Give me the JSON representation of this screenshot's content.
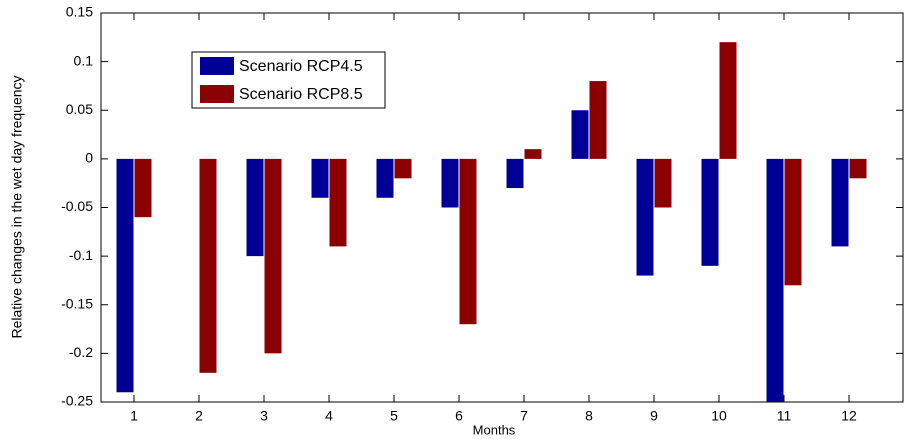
{
  "chart_data": {
    "type": "bar",
    "xlabel": "Months",
    "ylabel": "Relative changes in the wet day frequency",
    "categories": [
      "1",
      "2",
      "3",
      "4",
      "5",
      "6",
      "7",
      "8",
      "9",
      "10",
      "11",
      "12"
    ],
    "series": [
      {
        "name": "Scenario RCP4.5",
        "color": "#000096",
        "values": [
          -0.24,
          0,
          -0.1,
          -0.04,
          -0.04,
          -0.05,
          -0.03,
          0.05,
          -0.12,
          -0.11,
          -0.25,
          -0.09
        ]
      },
      {
        "name": "Scenario RCP8.5",
        "color": "#8b0000",
        "values": [
          -0.06,
          -0.22,
          -0.2,
          -0.09,
          -0.02,
          -0.17,
          0.01,
          0.08,
          -0.05,
          0.12,
          -0.13,
          -0.02
        ]
      }
    ],
    "ylim": [
      -0.25,
      0.15
    ],
    "yticks": [
      -0.25,
      -0.2,
      -0.15,
      -0.1,
      -0.05,
      0,
      0.05,
      0.1,
      0.15
    ],
    "grid": false
  }
}
